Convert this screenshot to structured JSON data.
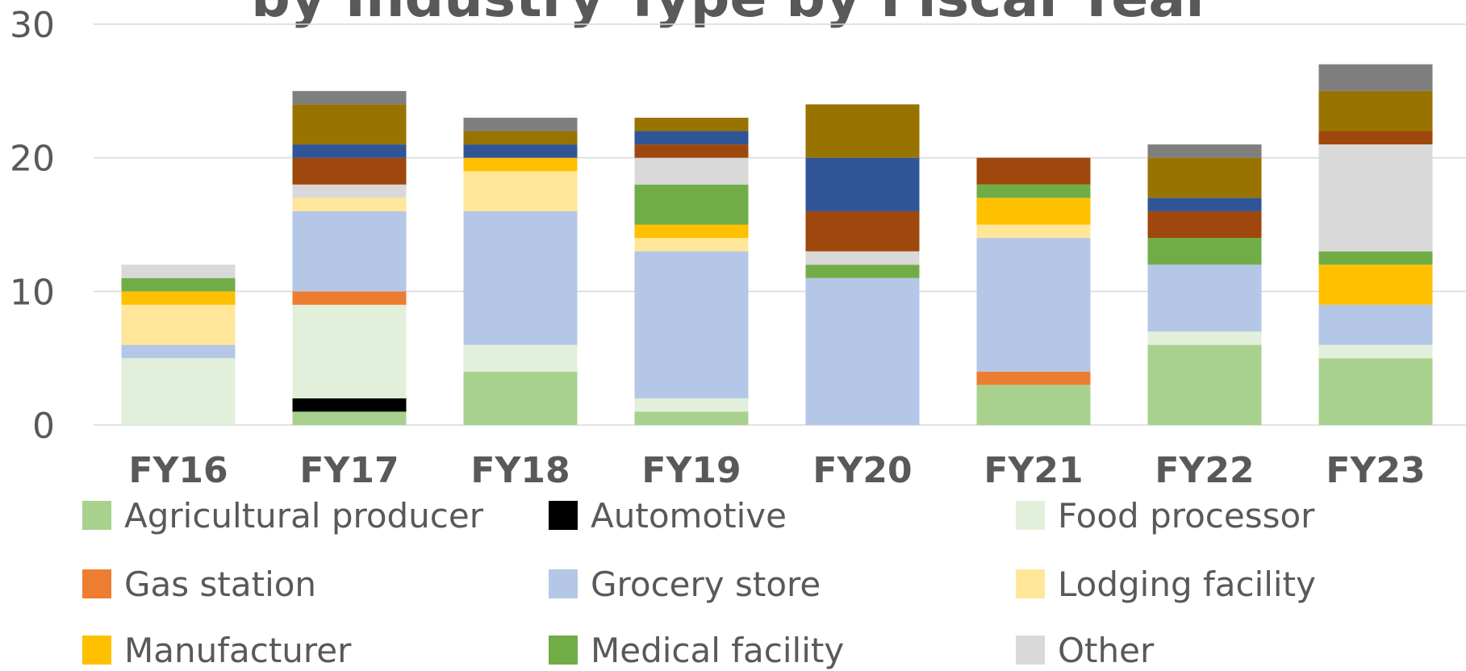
{
  "chart_data": {
    "type": "stacked_bar",
    "title": "by Industry Type by Fiscal Year",
    "categories": [
      "FY16",
      "FY17",
      "FY18",
      "FY19",
      "FY20",
      "FY21",
      "FY22",
      "FY23"
    ],
    "ylim": [
      0,
      30
    ],
    "yticks": [
      0,
      10,
      20,
      30
    ],
    "grid": true,
    "series": [
      {
        "name": "Agricultural producer",
        "color": "#a9d18e",
        "values": [
          0,
          1,
          4,
          1,
          0,
          3,
          6,
          5
        ]
      },
      {
        "name": "Automotive",
        "color": "#000000",
        "values": [
          0,
          1,
          0,
          0,
          0,
          0,
          0,
          0
        ]
      },
      {
        "name": "Food processor",
        "color": "#e2efda",
        "values": [
          5,
          7,
          2,
          1,
          0,
          0,
          1,
          1
        ]
      },
      {
        "name": "Gas station",
        "color": "#ed7d31",
        "values": [
          0,
          1,
          0,
          0,
          0,
          1,
          0,
          0
        ]
      },
      {
        "name": "Grocery store",
        "color": "#b4c7e7",
        "values": [
          1,
          6,
          10,
          11,
          11,
          10,
          5,
          3
        ]
      },
      {
        "name": "Lodging facility",
        "color": "#ffe699",
        "values": [
          3,
          1,
          3,
          1,
          0,
          1,
          0,
          0
        ]
      },
      {
        "name": "Manufacturer",
        "color": "#ffc000",
        "values": [
          1,
          0,
          1,
          1,
          0,
          2,
          0,
          3
        ]
      },
      {
        "name": "Medical facility",
        "color": "#70ad47",
        "values": [
          1,
          0,
          0,
          3,
          1,
          1,
          2,
          1
        ]
      },
      {
        "name": "Other",
        "color": "#d9d9d9",
        "values": [
          1,
          1,
          0,
          2,
          1,
          0,
          0,
          8
        ]
      },
      {
        "color": "#9e480e",
        "values": [
          0,
          2,
          0,
          1,
          3,
          2,
          2,
          1
        ]
      },
      {
        "color": "#2f5597",
        "values": [
          0,
          1,
          1,
          1,
          4,
          0,
          1,
          0
        ]
      },
      {
        "color": "#997300",
        "values": [
          0,
          3,
          1,
          1,
          4,
          0,
          3,
          3
        ]
      },
      {
        "color": "#7f7f7f",
        "values": [
          0,
          1,
          1,
          0,
          0,
          0,
          1,
          2
        ]
      }
    ]
  }
}
